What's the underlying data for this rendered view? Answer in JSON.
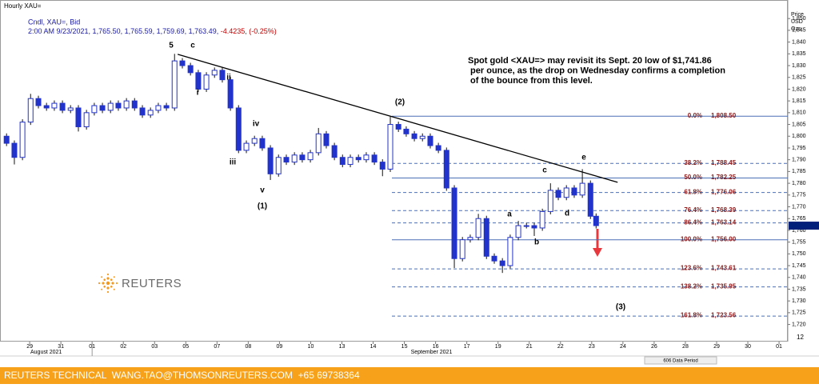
{
  "chart_data": {
    "type": "candlestick",
    "title": "Hourly XAU=",
    "subtitle": "Cndl, XAU=, Bid",
    "quote": "2:00 AM 9/23/2021, 1,765.50, 1,765.59, 1,759.69, 1,763.49,",
    "change": "-4.4235, (-0.25%)",
    "y_axis_label": [
      "Price",
      "USD",
      "Ozs"
    ],
    "color": "#2233cc",
    "x": [
      -0.74,
      -0.49,
      -0.23,
      0.03,
      0.28,
      0.54,
      0.79,
      1.05,
      1.31,
      1.56,
      1.82,
      2.07,
      2.33,
      2.59,
      2.84,
      3.1,
      3.36,
      3.61,
      3.87,
      4.12,
      4.38,
      4.64,
      4.89,
      5.15,
      5.4,
      5.66,
      5.92,
      6.17,
      6.43,
      6.69,
      6.94,
      7.2,
      7.45,
      7.71,
      7.97,
      8.22,
      8.48,
      8.73,
      8.99,
      9.25,
      9.5,
      9.76,
      10.02,
      10.27,
      10.53,
      10.78,
      11.04,
      11.3,
      11.55,
      11.81,
      12.06,
      12.32,
      12.58,
      12.83,
      13.09,
      13.35,
      13.6,
      13.86,
      14.11,
      14.37,
      14.63,
      14.88,
      15.14,
      15.39,
      15.65,
      15.91,
      16.16,
      16.42,
      16.68,
      16.93,
      17.19,
      17.44,
      17.7,
      17.96,
      18.14
    ],
    "open": [
      1800,
      1797,
      1791,
      1806,
      1816,
      1813,
      1812,
      1814,
      1811,
      1812,
      1804,
      1810,
      1813,
      1811,
      1814,
      1812,
      1815,
      1812,
      1809,
      1811,
      1813,
      1812,
      1832,
      1830,
      1827,
      1820,
      1826,
      1828,
      1824,
      1812,
      1794,
      1797,
      1799,
      1795,
      1784,
      1791,
      1789,
      1792,
      1790,
      1793,
      1801,
      1796,
      1791,
      1788,
      1791,
      1790,
      1792,
      1789,
      1786,
      1805,
      1803,
      1801,
      1799,
      1800,
      1796,
      1794,
      1778,
      1748,
      1756,
      1757,
      1765,
      1749,
      1747,
      1745,
      1757,
      1762,
      1762,
      1761,
      1768,
      1777,
      1774,
      1778,
      1775,
      1780,
      1766
    ],
    "high": [
      1801.2,
      1798.2,
      1807.2,
      1818,
      1817.2,
      1814.2,
      1815.2,
      1815.2,
      1813.2,
      1813.2,
      1811.2,
      1814.2,
      1814.2,
      1815.2,
      1815.2,
      1816.2,
      1816.2,
      1813.2,
      1812.2,
      1814.2,
      1814.2,
      1835,
      1833.2,
      1831.2,
      1828.2,
      1827.2,
      1829.2,
      1829.2,
      1825.2,
      1813.2,
      1798.2,
      1800.2,
      1800.2,
      1796.2,
      1792.2,
      1792.2,
      1793.2,
      1793.2,
      1794.2,
      1803.5,
      1802.2,
      1797.2,
      1792.2,
      1792.2,
      1792.2,
      1793.2,
      1793.2,
      1790.2,
      1808.6,
      1806.2,
      1804.2,
      1802.2,
      1801.2,
      1801.2,
      1797.2,
      1795.2,
      1779.2,
      1757.2,
      1758.2,
      1767,
      1766.2,
      1750.2,
      1748.2,
      1758.2,
      1764,
      1763.2,
      1763.2,
      1769.2,
      1780,
      1778.2,
      1779.2,
      1779.2,
      1786,
      1781.2,
      1767.2
    ],
    "low": [
      1795.8,
      1788,
      1789.8,
      1804.8,
      1811.8,
      1810.8,
      1810.8,
      1809.8,
      1809.8,
      1802,
      1802.8,
      1808.8,
      1809.8,
      1809.8,
      1810.8,
      1810.8,
      1810.8,
      1807.8,
      1807.8,
      1809.8,
      1810.8,
      1810.8,
      1828.8,
      1825.8,
      1818.8,
      1818.8,
      1824.8,
      1822.8,
      1810.8,
      1792.8,
      1792.8,
      1795.8,
      1793.8,
      1781.4,
      1782.8,
      1787.8,
      1787.8,
      1788.8,
      1788.8,
      1791.8,
      1794.8,
      1789.8,
      1786.8,
      1786.8,
      1788.8,
      1788.8,
      1787.8,
      1783,
      1784.8,
      1801.8,
      1799.8,
      1797.8,
      1797.8,
      1794.8,
      1792.8,
      1776.8,
      1744,
      1746.8,
      1754.8,
      1755.8,
      1747.8,
      1745.8,
      1741.9,
      1743.8,
      1755.8,
      1760.8,
      1757.6,
      1759.8,
      1766.8,
      1772.8,
      1772.8,
      1773.8,
      1773.8,
      1764.8,
      1760.8
    ],
    "close": [
      1797,
      1791,
      1806,
      1816,
      1813,
      1812,
      1814,
      1811,
      1812,
      1804,
      1810,
      1813,
      1811,
      1814,
      1812,
      1815,
      1812,
      1809,
      1811,
      1813,
      1812,
      1832,
      1830,
      1827,
      1820,
      1826,
      1828,
      1824,
      1812,
      1794,
      1797,
      1799,
      1795,
      1784,
      1791,
      1789,
      1792,
      1790,
      1793,
      1801,
      1796,
      1791,
      1788,
      1791,
      1790,
      1792,
      1789,
      1786,
      1805,
      1803,
      1801,
      1799,
      1800,
      1796,
      1794,
      1778,
      1748,
      1756,
      1757,
      1765,
      1749,
      1747,
      1745,
      1757,
      1762,
      1762,
      1761,
      1768,
      1777,
      1774,
      1778,
      1775,
      1780,
      1766,
      1762
    ],
    "xlim": [
      -0.95,
      24.28
    ],
    "ylim": [
      1713.4,
      1853.8
    ],
    "xticks": [
      {
        "value": 0,
        "label": "29"
      },
      {
        "value": 1,
        "label": "31"
      },
      {
        "value": 2,
        "label": "01"
      },
      {
        "value": 3,
        "label": "02"
      },
      {
        "value": 4,
        "label": "03"
      },
      {
        "value": 5,
        "label": "05"
      },
      {
        "value": 6,
        "label": "07"
      },
      {
        "value": 7,
        "label": "08"
      },
      {
        "value": 8,
        "label": "09"
      },
      {
        "value": 9,
        "label": "10"
      },
      {
        "value": 10,
        "label": "13"
      },
      {
        "value": 11,
        "label": "14"
      },
      {
        "value": 12,
        "label": "15"
      },
      {
        "value": 13,
        "label": "16"
      },
      {
        "value": 14,
        "label": "17"
      },
      {
        "value": 15,
        "label": "19"
      },
      {
        "value": 16,
        "label": "21"
      },
      {
        "value": 17,
        "label": "22"
      },
      {
        "value": 18,
        "label": "23"
      },
      {
        "value": 19,
        "label": "24"
      },
      {
        "value": 20,
        "label": "26"
      },
      {
        "value": 21,
        "label": "28"
      },
      {
        "value": 22,
        "label": "29"
      },
      {
        "value": 23,
        "label": "30"
      },
      {
        "value": 24,
        "label": "01"
      }
    ],
    "month_labels": [
      "August 2021",
      "September 2021"
    ],
    "yticks": [
      {
        "value": 1720,
        "label": "1,720"
      },
      {
        "value": 1725,
        "label": "1,725"
      },
      {
        "value": 1730,
        "label": "1,730"
      },
      {
        "value": 1735,
        "label": "1,735"
      },
      {
        "value": 1740,
        "label": "1,740"
      },
      {
        "value": 1745,
        "label": "1,745"
      },
      {
        "value": 1750,
        "label": "1,750"
      },
      {
        "value": 1755,
        "label": "1,755"
      },
      {
        "value": 1760,
        "label": "1,760"
      },
      {
        "value": 1765,
        "label": "1,765"
      },
      {
        "value": 1770,
        "label": "1,770"
      },
      {
        "value": 1775,
        "label": "1,775"
      },
      {
        "value": 1780,
        "label": "1,780"
      },
      {
        "value": 1785,
        "label": "1,785"
      },
      {
        "value": 1790,
        "label": "1,790"
      },
      {
        "value": 1795,
        "label": "1,795"
      },
      {
        "value": 1800,
        "label": "1,800"
      },
      {
        "value": 1805,
        "label": "1,805"
      },
      {
        "value": 1810,
        "label": "1,810"
      },
      {
        "value": 1815,
        "label": "1,815"
      },
      {
        "value": 1820,
        "label": "1,820"
      },
      {
        "value": 1825,
        "label": "1,825"
      },
      {
        "value": 1830,
        "label": "1,830"
      },
      {
        "value": 1835,
        "label": "1,835"
      },
      {
        "value": 1840,
        "label": "1,840"
      },
      {
        "value": 1845,
        "label": "1,845"
      },
      {
        "value": 1850,
        "label": "1,850"
      }
    ],
    "fib_levels": [
      {
        "label": "0.0%",
        "value": 1808.5,
        "value_label": "1,808.50",
        "solid": true
      },
      {
        "label": "38.2%",
        "value": 1788.45,
        "value_label": "1,788.45",
        "solid": false
      },
      {
        "label": "50.0%",
        "value": 1782.25,
        "value_label": "1,782.25",
        "solid": true
      },
      {
        "label": "61.8%",
        "value": 1776.06,
        "value_label": "1,776.06",
        "solid": false
      },
      {
        "label": "76.4%",
        "value": 1768.39,
        "value_label": "1,768.39",
        "solid": false
      },
      {
        "label": "86.4%",
        "value": 1763.14,
        "value_label": "1,763.14",
        "solid": false
      },
      {
        "label": "100.0%",
        "value": 1756,
        "value_label": "1,756.00",
        "solid": true
      },
      {
        "label": "123.6%",
        "value": 1743.61,
        "value_label": "1,743.61",
        "solid": false
      },
      {
        "label": "138.2%",
        "value": 1735.95,
        "value_label": "1,735.95",
        "solid": false
      },
      {
        "label": "161.8%",
        "value": 1723.56,
        "value_label": "1,723.56",
        "solid": false
      }
    ],
    "trendline": {
      "x": [
        4.74,
        18.83
      ],
      "y": [
        1834.8,
        1780.4
      ]
    },
    "wave_labels": [
      "5",
      "c",
      "i",
      "ii",
      "iii",
      "iv",
      "v",
      "(1)",
      "(2)",
      "a",
      "b",
      "c",
      "d",
      "e",
      "(3)"
    ],
    "note": [
      "Spot gold <XAU=> may revisit its Sept. 20 low of $1,741.86",
      " per ounce, as the drop on Wednesday confirms a completion",
      " of the bounce from this level."
    ],
    "logo": "REUTERS",
    "data_period": "606 Data Period",
    "corner_label": "12",
    "footer": "REUTERS TECHNICAL  WANG.TAO@THOMSONREUTERS.COM  +65 69738364"
  }
}
